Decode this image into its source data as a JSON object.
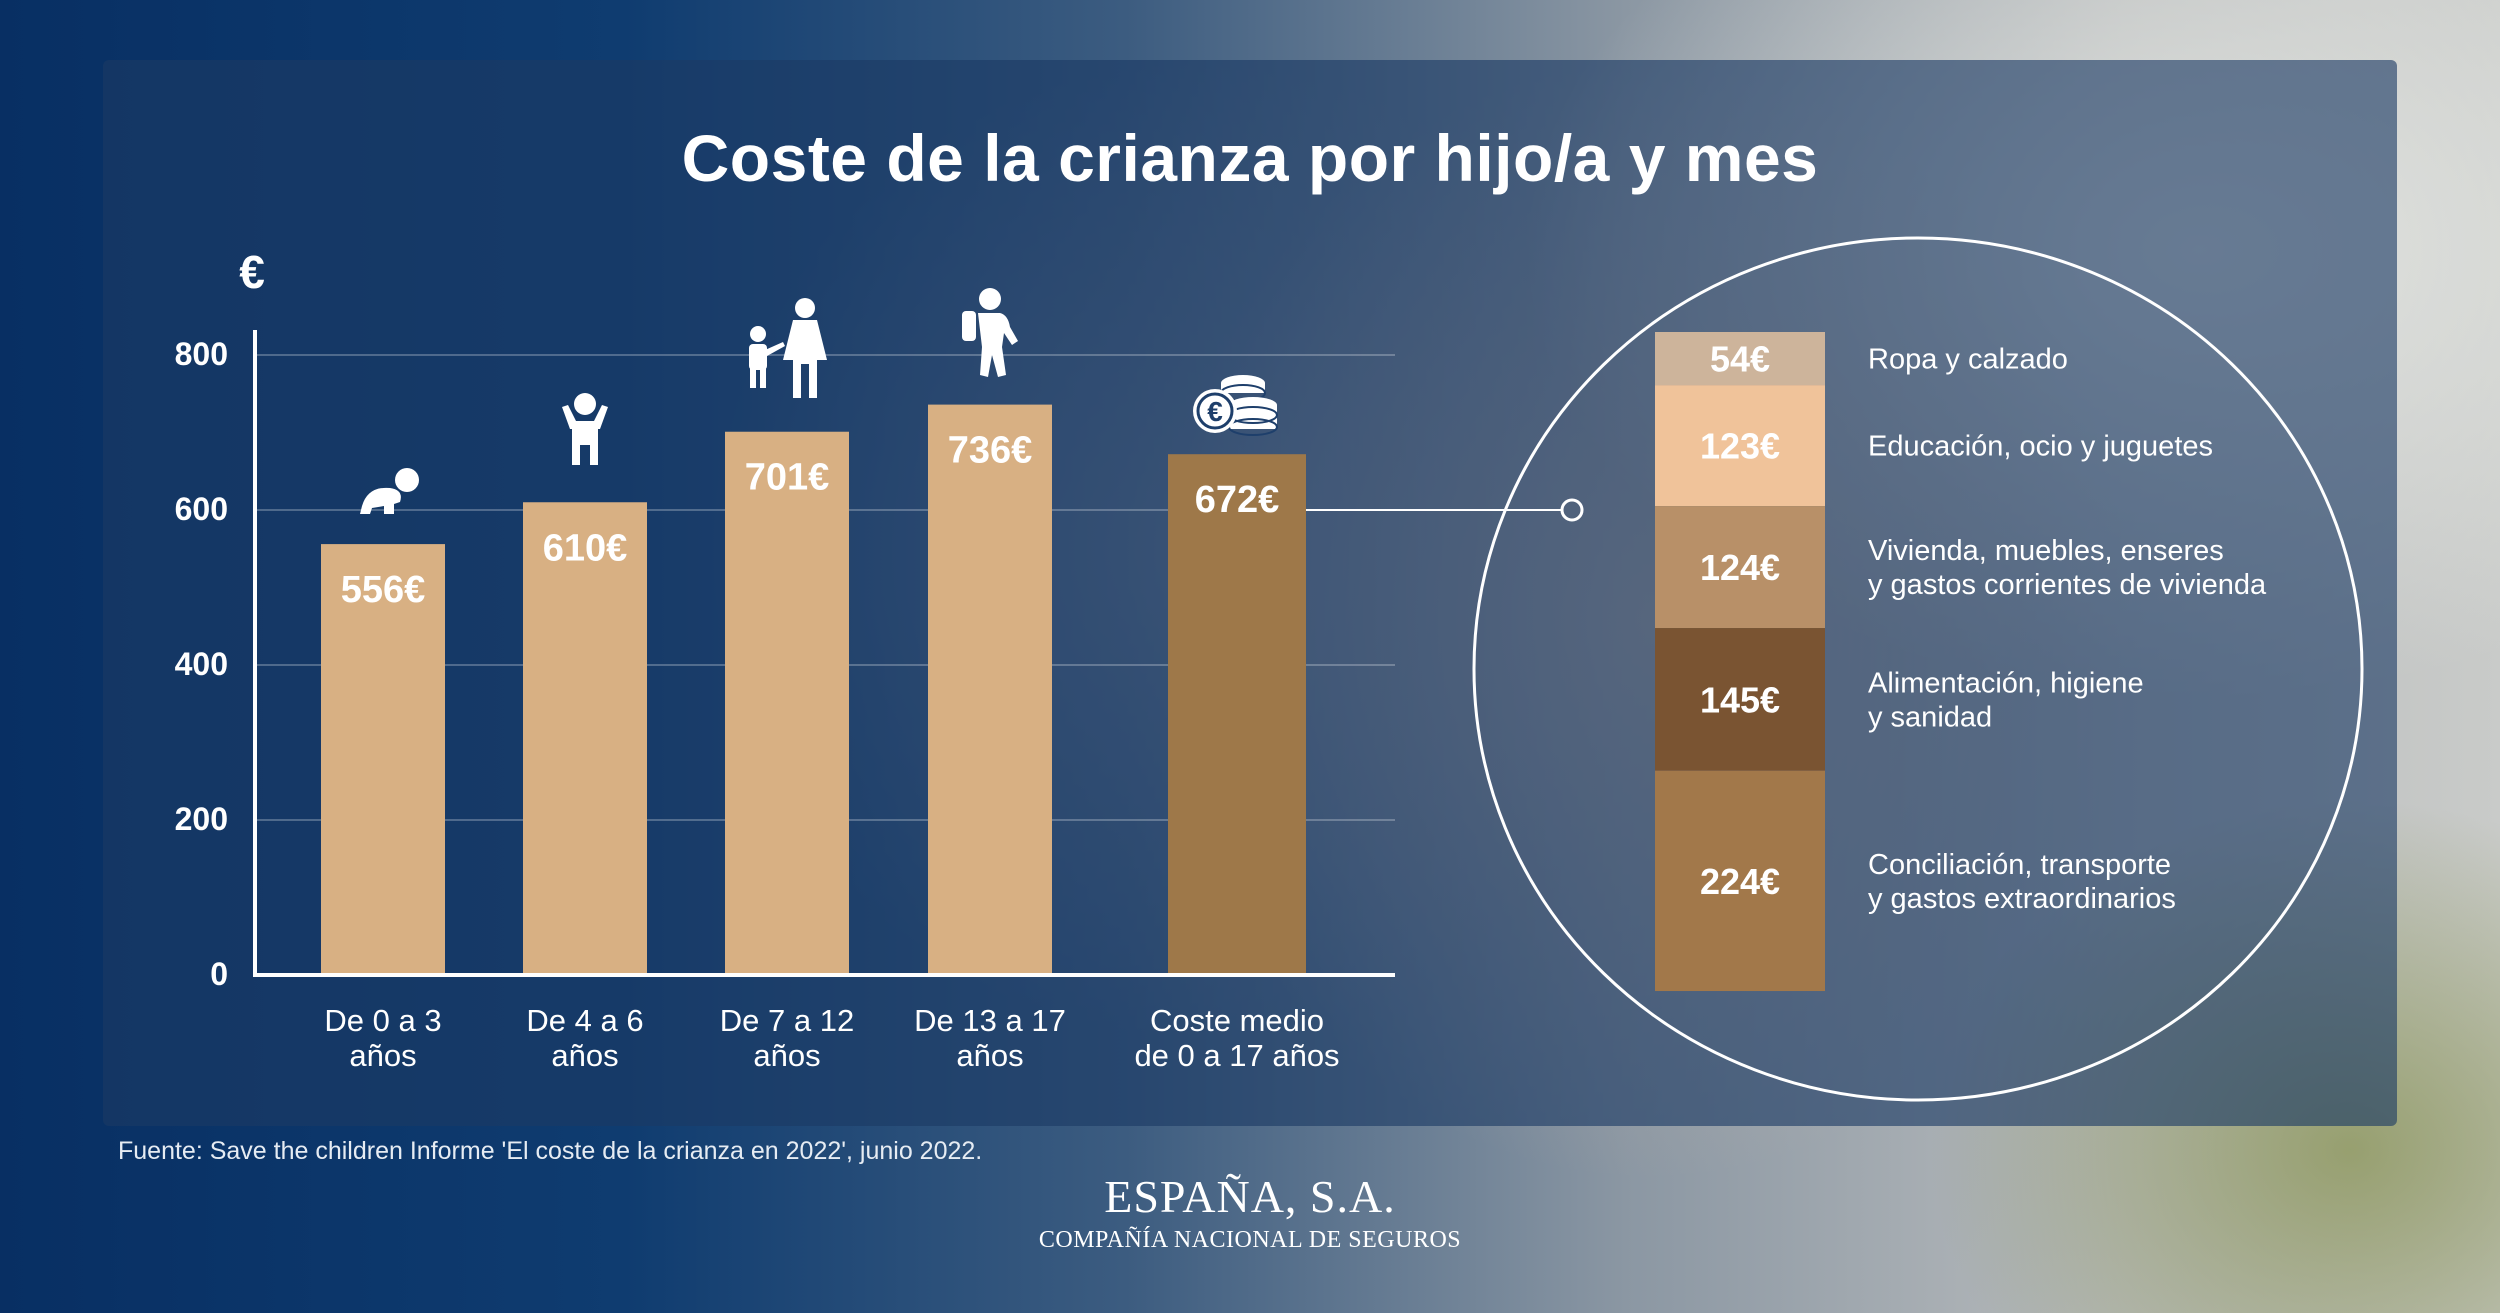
{
  "title": "Coste de la crianza por hijo/a y mes",
  "source": "Fuente: Save the children  Informe 'El coste de la crianza en 2022', junio 2022.",
  "brand": {
    "name": "ESPAÑA, S.A.",
    "subtitle": "COMPAÑÍA NACIONAL DE SEGUROS"
  },
  "colors": {
    "bar": "#d8b083",
    "bar_average": "#9e7849",
    "axis": "#ffffff",
    "grid": "rgba(255,255,255,0.25)",
    "segments": [
      "#cdb49b",
      "#f0c39a",
      "#b89068",
      "#7a5432",
      "#a2784a"
    ]
  },
  "chart_data": [
    {
      "type": "bar",
      "title": "",
      "ylabel": "€",
      "ylim": [
        0,
        800
      ],
      "yticks": [
        0,
        200,
        400,
        600,
        800
      ],
      "grid": true,
      "categories": [
        [
          "De 0 a 3",
          "años"
        ],
        [
          "De 4 a 6",
          "años"
        ],
        [
          "De 7 a 12",
          "años"
        ],
        [
          "De 13 a 17",
          "años"
        ],
        [
          "Coste medio",
          "de 0 a 17 años"
        ]
      ],
      "values": [
        556,
        610,
        701,
        736,
        672
      ],
      "labels": [
        "556€",
        "610€",
        "701€",
        "736€",
        "672€"
      ],
      "icons": [
        "baby-icon",
        "child-icon",
        "parent-child-icon",
        "teen-backpack-icon",
        "coins-icon"
      ]
    },
    {
      "type": "bar",
      "stacked": true,
      "total": 672,
      "segments": [
        {
          "value": 54,
          "label": "54€",
          "category": [
            "Ropa y calzado"
          ]
        },
        {
          "value": 123,
          "label": "123€",
          "category": [
            "Educación, ocio y juguetes"
          ]
        },
        {
          "value": 124,
          "label": "124€",
          "category": [
            "Vivienda, muebles, enseres",
            "y gastos corrientes de vivienda"
          ]
        },
        {
          "value": 145,
          "label": "145€",
          "category": [
            "Alimentación, higiene",
            "y sanidad"
          ]
        },
        {
          "value": 224,
          "label": "224€",
          "category": [
            "Conciliación, transporte",
            "y gastos extraordinarios"
          ]
        }
      ]
    }
  ]
}
